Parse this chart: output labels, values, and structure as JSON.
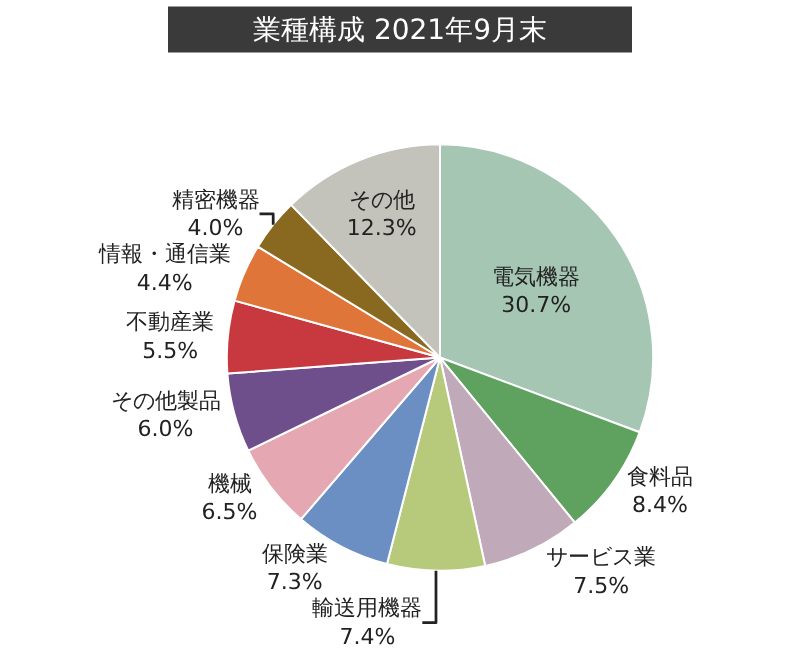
{
  "chart_data": {
    "type": "pie",
    "title": "業種構成 2021年9月末",
    "categories": [
      "電気機器",
      "食料品",
      "サービス業",
      "輸送用機器",
      "保険業",
      "機械",
      "その他製品",
      "不動産業",
      "情報・通信業",
      "精密機器",
      "その他"
    ],
    "values": [
      30.7,
      8.4,
      7.5,
      7.4,
      7.3,
      6.5,
      6.0,
      5.5,
      4.4,
      4.0,
      12.3
    ],
    "value_labels": [
      "30.7%",
      "8.4%",
      "7.5%",
      "7.4%",
      "7.3%",
      "6.5%",
      "6.0%",
      "5.5%",
      "4.4%",
      "4.0%",
      "12.3%"
    ],
    "colors": [
      "#a6c6b4",
      "#5fa260",
      "#c0a9b9",
      "#b7ca7c",
      "#6b8fc3",
      "#e5a8b3",
      "#6f4f8b",
      "#c8393f",
      "#df7538",
      "#89691f",
      "#c3c3bc"
    ]
  }
}
